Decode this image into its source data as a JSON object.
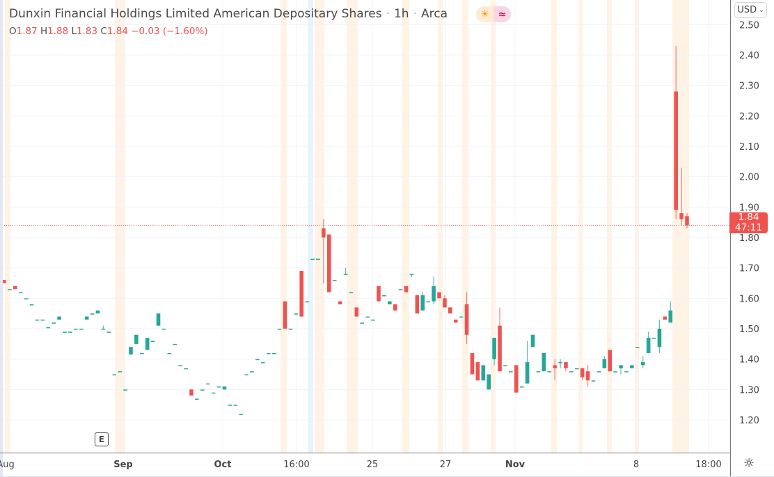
{
  "header": {
    "title": "Dunxin Financial Holdings Limited American Depositary Shares",
    "interval": "1h",
    "exchange": "Arca",
    "separator": "·",
    "market_status_icon": "sun-icon",
    "extended_icon": "wave-icon"
  },
  "ohlc": {
    "o_label": "O",
    "o": "1.87",
    "h_label": "H",
    "h": "1.88",
    "l_label": "L",
    "l": "1.83",
    "c_label": "C",
    "c": "1.84",
    "change": "−0.03 (−1.60%)"
  },
  "price_axis": {
    "currency": "USD",
    "last_price": "1.84",
    "countdown": "47:11"
  },
  "earnings_marker": "E",
  "colors": {
    "up": "#26a69a",
    "down": "#ef5350",
    "session_band": "#fff3e6",
    "highlight_band": "#e8f3fd"
  },
  "chart_data": {
    "type": "candlestick",
    "ylim": [
      1.12,
      2.5
    ],
    "y_ticks": [
      "1.20",
      "1.30",
      "1.40",
      "1.50",
      "1.60",
      "1.70",
      "1.80",
      "1.90",
      "2.00",
      "2.10",
      "2.20",
      "2.30",
      "2.40",
      "2.50"
    ],
    "x_ticks": [
      "Aug",
      "Sep",
      "Oct",
      "16:00",
      "25",
      "27",
      "Nov",
      "8",
      "18:00"
    ],
    "grid": true,
    "last_price_line": 1.84,
    "ohlc": [
      [
        1.66,
        1.66,
        1.65,
        1.65
      ],
      [
        1.63,
        1.63,
        1.63,
        1.63
      ],
      [
        1.64,
        1.64,
        1.63,
        1.63
      ],
      [
        1.62,
        1.62,
        1.62,
        1.62
      ],
      [
        1.6,
        1.6,
        1.6,
        1.6
      ],
      [
        1.58,
        1.58,
        1.58,
        1.58
      ],
      [
        1.53,
        1.53,
        1.53,
        1.53
      ],
      [
        1.53,
        1.53,
        1.53,
        1.53
      ],
      [
        1.505,
        1.505,
        1.505,
        1.505
      ],
      [
        1.52,
        1.52,
        1.52,
        1.52
      ],
      [
        1.53,
        1.54,
        1.53,
        1.54
      ],
      [
        1.49,
        1.49,
        1.49,
        1.49
      ],
      [
        1.49,
        1.49,
        1.49,
        1.49
      ],
      [
        1.5,
        1.5,
        1.5,
        1.5
      ],
      [
        1.5,
        1.5,
        1.5,
        1.5
      ],
      [
        1.53,
        1.54,
        1.53,
        1.54
      ],
      [
        1.55,
        1.55,
        1.55,
        1.55
      ],
      [
        1.55,
        1.56,
        1.55,
        1.56
      ],
      [
        1.5,
        1.51,
        1.5,
        1.5
      ],
      [
        1.49,
        1.49,
        1.49,
        1.49
      ],
      [
        1.35,
        1.35,
        1.35,
        1.35
      ],
      [
        1.36,
        1.36,
        1.36,
        1.36
      ],
      [
        1.3,
        1.3,
        1.3,
        1.3
      ],
      [
        1.415,
        1.44,
        1.415,
        1.44
      ],
      [
        1.45,
        1.48,
        1.45,
        1.48
      ],
      [
        1.42,
        1.42,
        1.42,
        1.42
      ],
      [
        1.43,
        1.47,
        1.43,
        1.47
      ],
      [
        1.46,
        1.46,
        1.46,
        1.46
      ],
      [
        1.51,
        1.55,
        1.51,
        1.55
      ],
      [
        1.5,
        1.5,
        1.5,
        1.5
      ],
      [
        1.42,
        1.42,
        1.42,
        1.42
      ],
      [
        1.45,
        1.45,
        1.45,
        1.45
      ],
      [
        1.38,
        1.38,
        1.38,
        1.38
      ],
      [
        1.37,
        1.37,
        1.37,
        1.37
      ],
      [
        1.3,
        1.3,
        1.28,
        1.28
      ],
      [
        1.27,
        1.27,
        1.27,
        1.27
      ],
      [
        1.3,
        1.3,
        1.3,
        1.3
      ],
      [
        1.32,
        1.32,
        1.32,
        1.32
      ],
      [
        1.29,
        1.29,
        1.29,
        1.29
      ],
      [
        1.31,
        1.31,
        1.31,
        1.31
      ],
      [
        1.3,
        1.31,
        1.3,
        1.31
      ],
      [
        1.25,
        1.25,
        1.25,
        1.25
      ],
      [
        1.25,
        1.25,
        1.25,
        1.25
      ],
      [
        1.22,
        1.22,
        1.22,
        1.22
      ],
      [
        1.35,
        1.35,
        1.35,
        1.35
      ],
      [
        1.36,
        1.36,
        1.36,
        1.36
      ],
      [
        1.4,
        1.4,
        1.4,
        1.4
      ],
      [
        1.39,
        1.39,
        1.39,
        1.39
      ],
      [
        1.42,
        1.42,
        1.42,
        1.42
      ],
      [
        1.42,
        1.42,
        1.42,
        1.42
      ],
      [
        1.5,
        1.5,
        1.5,
        1.5
      ],
      [
        1.59,
        1.59,
        1.5,
        1.5
      ],
      [
        1.5,
        1.5,
        1.5,
        1.5
      ],
      [
        1.55,
        1.55,
        1.55,
        1.55
      ],
      [
        1.69,
        1.69,
        1.54,
        1.54
      ],
      [
        1.59,
        1.59,
        1.59,
        1.59
      ],
      [
        1.73,
        1.73,
        1.73,
        1.73
      ],
      [
        1.73,
        1.73,
        1.73,
        1.73
      ],
      [
        1.83,
        1.86,
        1.65,
        1.8
      ],
      [
        1.81,
        1.81,
        1.62,
        1.62
      ],
      [
        1.66,
        1.66,
        1.66,
        1.66
      ],
      [
        1.59,
        1.59,
        1.58,
        1.58
      ],
      [
        1.68,
        1.7,
        1.68,
        1.68
      ],
      [
        1.62,
        1.62,
        1.62,
        1.62
      ],
      [
        1.57,
        1.57,
        1.54,
        1.54
      ],
      [
        1.52,
        1.52,
        1.52,
        1.52
      ],
      [
        1.54,
        1.54,
        1.54,
        1.54
      ],
      [
        1.53,
        1.53,
        1.53,
        1.53
      ],
      [
        1.64,
        1.64,
        1.59,
        1.59
      ],
      [
        1.61,
        1.61,
        1.61,
        1.61
      ],
      [
        1.58,
        1.59,
        1.58,
        1.59
      ],
      [
        1.58,
        1.58,
        1.56,
        1.56
      ],
      [
        1.63,
        1.63,
        1.63,
        1.63
      ],
      [
        1.64,
        1.64,
        1.62,
        1.62
      ],
      [
        1.68,
        1.68,
        1.67,
        1.68
      ],
      [
        1.61,
        1.61,
        1.55,
        1.55
      ],
      [
        1.56,
        1.62,
        1.56,
        1.61
      ],
      [
        1.59,
        1.59,
        1.59,
        1.59
      ],
      [
        1.59,
        1.67,
        1.58,
        1.64
      ],
      [
        1.62,
        1.62,
        1.6,
        1.6
      ],
      [
        1.6,
        1.61,
        1.57,
        1.57
      ],
      [
        1.57,
        1.57,
        1.55,
        1.55
      ],
      [
        1.53,
        1.53,
        1.52,
        1.52
      ],
      [
        1.54,
        1.54,
        1.54,
        1.54
      ],
      [
        1.58,
        1.62,
        1.45,
        1.48
      ],
      [
        1.42,
        1.42,
        1.35,
        1.35
      ],
      [
        1.39,
        1.39,
        1.33,
        1.33
      ],
      [
        1.33,
        1.38,
        1.33,
        1.38
      ],
      [
        1.3,
        1.35,
        1.3,
        1.35
      ],
      [
        1.4,
        1.47,
        1.38,
        1.47
      ],
      [
        1.51,
        1.57,
        1.36,
        1.36
      ],
      [
        1.38,
        1.38,
        1.38,
        1.38
      ],
      [
        1.36,
        1.36,
        1.36,
        1.36
      ],
      [
        1.38,
        1.38,
        1.29,
        1.29
      ],
      [
        1.31,
        1.31,
        1.31,
        1.31
      ],
      [
        1.32,
        1.46,
        1.32,
        1.39
      ],
      [
        1.44,
        1.48,
        1.44,
        1.48
      ],
      [
        1.36,
        1.36,
        1.36,
        1.36
      ],
      [
        1.36,
        1.42,
        1.36,
        1.42
      ],
      [
        1.36,
        1.36,
        1.36,
        1.36
      ],
      [
        1.38,
        1.4,
        1.33,
        1.37
      ],
      [
        1.39,
        1.4,
        1.37,
        1.39
      ],
      [
        1.39,
        1.39,
        1.36,
        1.37
      ],
      [
        1.36,
        1.36,
        1.36,
        1.36
      ],
      [
        1.37,
        1.37,
        1.37,
        1.37
      ],
      [
        1.37,
        1.37,
        1.33,
        1.34
      ],
      [
        1.36,
        1.38,
        1.31,
        1.33
      ],
      [
        1.33,
        1.33,
        1.33,
        1.33
      ],
      [
        1.36,
        1.36,
        1.36,
        1.36
      ],
      [
        1.37,
        1.41,
        1.37,
        1.4
      ],
      [
        1.43,
        1.43,
        1.36,
        1.36
      ],
      [
        1.36,
        1.36,
        1.36,
        1.36
      ],
      [
        1.37,
        1.38,
        1.35,
        1.38
      ],
      [
        1.36,
        1.36,
        1.36,
        1.36
      ],
      [
        1.37,
        1.38,
        1.37,
        1.38
      ],
      [
        1.44,
        1.44,
        1.44,
        1.44
      ],
      [
        1.38,
        1.41,
        1.37,
        1.39
      ],
      [
        1.42,
        1.49,
        1.42,
        1.47
      ],
      [
        1.47,
        1.47,
        1.47,
        1.47
      ],
      [
        1.44,
        1.53,
        1.42,
        1.5
      ],
      [
        1.54,
        1.54,
        1.53,
        1.53
      ],
      [
        1.52,
        1.59,
        1.52,
        1.56
      ],
      [
        2.28,
        2.43,
        1.86,
        1.89
      ],
      [
        1.88,
        2.03,
        1.84,
        1.86
      ],
      [
        1.87,
        1.88,
        1.83,
        1.84
      ]
    ]
  }
}
